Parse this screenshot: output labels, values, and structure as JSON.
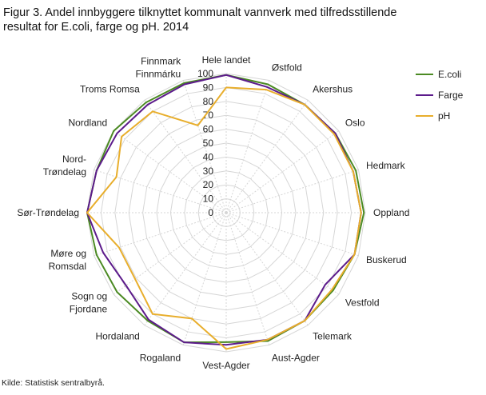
{
  "chart_data": {
    "type": "radar",
    "title": "Figur 3. Andel innbyggere tilknyttet kommunalt vannverk med tilfredsstillende\nresultat for E.coli, farge og pH. 2014",
    "source": "Kilde: Statistisk sentralbyrå.",
    "categories": [
      "Hele landet",
      "Østfold",
      "Akershus",
      "Oslo",
      "Hedmark",
      "Oppland",
      "Buskerud",
      "Vestfold",
      "Telemark",
      "Aust-Agder",
      "Vest-Agder",
      "Rogaland",
      "Hordaland",
      "Sogn og\nFjordane",
      "Møre og\nRomsdal",
      "Sør-Trøndelag",
      "Nord-\nTrøndelag",
      "Nordland",
      "Troms Romsa",
      "Finnmark\nFinnmárku"
    ],
    "series": [
      {
        "name": "E.coli",
        "color": "#4b8a23",
        "values": [
          99,
          97,
          96,
          97,
          98,
          99,
          97,
          95,
          96,
          97,
          93,
          98,
          96,
          97,
          98,
          100,
          98,
          100,
          98,
          98
        ]
      },
      {
        "name": "Farge",
        "color": "#5c1b8b",
        "values": [
          99,
          95,
          96,
          97,
          96,
          97,
          97,
          88,
          96,
          96,
          95,
          98,
          95,
          89,
          93,
          100,
          98,
          97,
          96,
          97
        ]
      },
      {
        "name": "pH",
        "color": "#e8ae2c",
        "values": [
          90,
          93,
          96,
          96,
          96,
          97,
          97,
          94,
          96,
          96,
          98,
          80,
          90,
          81,
          81,
          100,
          83,
          93,
          90,
          66
        ]
      }
    ],
    "rlim": [
      0,
      100
    ],
    "rticks": [
      0,
      10,
      20,
      30,
      40,
      50,
      60,
      70,
      80,
      90,
      100
    ],
    "grid": true,
    "legend": "top-right"
  }
}
